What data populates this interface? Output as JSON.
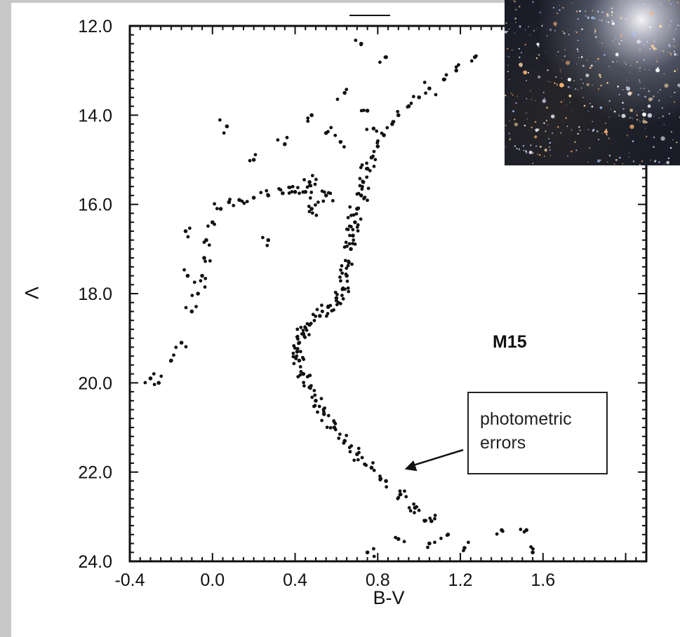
{
  "chart_data": {
    "type": "scatter",
    "title": "",
    "xlabel": "B-V",
    "ylabel": "V",
    "xlim": [
      -0.4,
      2.1
    ],
    "ylim": [
      24.0,
      12.0
    ],
    "y_inverted": true,
    "x_ticks": [
      "-0.4",
      "0.0",
      "0.4",
      "0.8",
      "1.2",
      "1.6"
    ],
    "y_ticks": [
      "12.0",
      "14.0",
      "16.0",
      "18.0",
      "20.0",
      "22.0",
      "24.0"
    ],
    "annotations": {
      "cluster_label": "M15",
      "callout_line1": "photometric",
      "callout_line2": "errors",
      "callout_points_to": {
        "x": 0.91,
        "y": 22.0
      }
    },
    "series": [
      {
        "values": [
          {
            "x": 0.72,
            "y": 12.4
          },
          {
            "x": 0.84,
            "y": 12.7
          },
          {
            "x": 1.27,
            "y": 12.7
          },
          {
            "x": 1.18,
            "y": 13.0
          },
          {
            "x": 1.12,
            "y": 13.2
          },
          {
            "x": 1.05,
            "y": 13.4
          },
          {
            "x": 1.0,
            "y": 13.6
          },
          {
            "x": 0.95,
            "y": 13.8
          },
          {
            "x": 0.9,
            "y": 14.0
          },
          {
            "x": 0.87,
            "y": 14.2
          },
          {
            "x": 0.83,
            "y": 14.45
          },
          {
            "x": 0.8,
            "y": 14.7
          },
          {
            "x": 0.77,
            "y": 14.95
          },
          {
            "x": 0.75,
            "y": 15.2
          },
          {
            "x": 0.73,
            "y": 15.5
          },
          {
            "x": 0.72,
            "y": 15.8
          },
          {
            "x": 0.7,
            "y": 16.1
          },
          {
            "x": 0.69,
            "y": 16.4
          },
          {
            "x": 0.68,
            "y": 16.7
          },
          {
            "x": 0.67,
            "y": 17.0
          },
          {
            "x": 0.66,
            "y": 17.3
          },
          {
            "x": 0.65,
            "y": 17.6
          },
          {
            "x": 0.63,
            "y": 17.9
          },
          {
            "x": 0.6,
            "y": 18.1
          },
          {
            "x": 0.56,
            "y": 18.3
          },
          {
            "x": 0.52,
            "y": 18.5
          },
          {
            "x": 0.47,
            "y": 18.7
          },
          {
            "x": 0.44,
            "y": 18.9
          },
          {
            "x": 0.42,
            "y": 19.1
          },
          {
            "x": 0.41,
            "y": 19.3
          },
          {
            "x": 0.42,
            "y": 19.5
          },
          {
            "x": 0.44,
            "y": 19.8
          },
          {
            "x": 0.47,
            "y": 20.1
          },
          {
            "x": 0.5,
            "y": 20.4
          },
          {
            "x": 0.54,
            "y": 20.7
          },
          {
            "x": 0.59,
            "y": 21.0
          },
          {
            "x": 0.64,
            "y": 21.3
          },
          {
            "x": 0.7,
            "y": 21.6
          },
          {
            "x": 0.77,
            "y": 21.9
          },
          {
            "x": 0.84,
            "y": 22.2
          },
          {
            "x": 0.91,
            "y": 22.5
          },
          {
            "x": 0.98,
            "y": 22.8
          },
          {
            "x": 1.06,
            "y": 23.1
          },
          {
            "x": 1.14,
            "y": 23.4
          },
          {
            "x": 1.22,
            "y": 23.7
          },
          {
            "x": 0.75,
            "y": 23.8
          },
          {
            "x": 0.9,
            "y": 23.5
          },
          {
            "x": 1.05,
            "y": 23.6
          },
          {
            "x": 1.4,
            "y": 23.3
          },
          {
            "x": 1.52,
            "y": 23.3
          },
          {
            "x": 1.55,
            "y": 23.8
          },
          {
            "x": 0.64,
            "y": 13.5
          },
          {
            "x": 0.48,
            "y": 14.0
          },
          {
            "x": 0.55,
            "y": 14.4
          },
          {
            "x": 0.62,
            "y": 14.6
          },
          {
            "x": 0.35,
            "y": 14.65
          },
          {
            "x": 0.07,
            "y": 14.25
          },
          {
            "x": 0.2,
            "y": 15.0
          },
          {
            "x": 0.75,
            "y": 13.9
          },
          {
            "x": 0.78,
            "y": 14.3
          },
          {
            "x": 0.47,
            "y": 15.5
          },
          {
            "x": 0.55,
            "y": 15.8
          },
          {
            "x": 0.48,
            "y": 16.1
          },
          {
            "x": 0.08,
            "y": 15.95
          },
          {
            "x": 0.13,
            "y": 15.9
          },
          {
            "x": 0.2,
            "y": 15.85
          },
          {
            "x": 0.27,
            "y": 15.8
          },
          {
            "x": 0.34,
            "y": 15.75
          },
          {
            "x": 0.4,
            "y": 15.72
          },
          {
            "x": 0.45,
            "y": 15.72
          },
          {
            "x": 0.04,
            "y": 16.1
          },
          {
            "x": 0.0,
            "y": 16.4
          },
          {
            "x": -0.03,
            "y": 16.8
          },
          {
            "x": -0.04,
            "y": 17.2
          },
          {
            "x": -0.05,
            "y": 17.6
          },
          {
            "x": -0.07,
            "y": 18.0
          },
          {
            "x": -0.12,
            "y": 17.6
          },
          {
            "x": -0.13,
            "y": 16.6
          },
          {
            "x": -0.1,
            "y": 18.4
          },
          {
            "x": -0.15,
            "y": 19.1
          },
          {
            "x": -0.2,
            "y": 19.5
          },
          {
            "x": -0.3,
            "y": 19.9
          },
          {
            "x": -0.26,
            "y": 20.0
          },
          {
            "x": 0.27,
            "y": 16.8
          }
        ]
      }
    ]
  }
}
